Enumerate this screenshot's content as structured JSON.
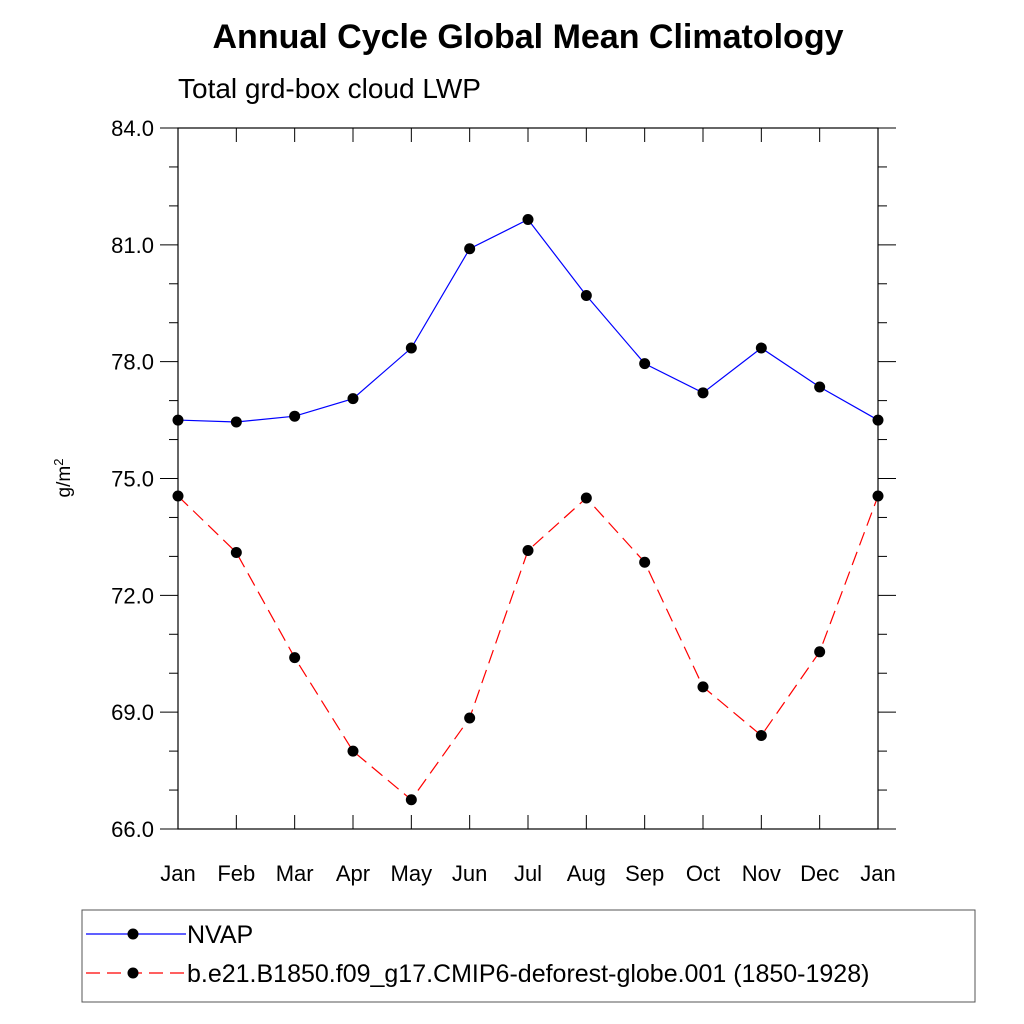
{
  "chart_data": {
    "type": "line",
    "title": "Annual Cycle Global Mean Climatology",
    "subtitle": "Total grd-box cloud LWP",
    "ylabel_base": "g/m",
    "ylabel_sup": "2",
    "xlabel": "",
    "categories": [
      "Jan",
      "Feb",
      "Mar",
      "Apr",
      "May",
      "Jun",
      "Jul",
      "Aug",
      "Sep",
      "Oct",
      "Nov",
      "Dec",
      "Jan"
    ],
    "ylim": [
      66.0,
      84.0
    ],
    "yticks": [
      "66.0",
      "69.0",
      "72.0",
      "75.0",
      "78.0",
      "81.0",
      "84.0"
    ],
    "grid": false,
    "legend_position": "bottom",
    "series": [
      {
        "name": "NVAP",
        "color": "#0000ff",
        "style": "solid",
        "marker": "filled-circle",
        "values": [
          76.5,
          76.45,
          76.6,
          77.05,
          78.35,
          80.9,
          81.65,
          79.7,
          77.95,
          77.2,
          78.35,
          77.35,
          76.5
        ]
      },
      {
        "name": "b.e21.B1850.f09_g17.CMIP6-deforest-globe.001 (1850-1928)",
        "color": "#ff0000",
        "style": "dashed",
        "marker": "filled-circle",
        "values": [
          74.55,
          73.1,
          70.4,
          68.0,
          66.75,
          68.85,
          73.15,
          74.5,
          72.85,
          69.65,
          68.4,
          70.55,
          74.55
        ]
      }
    ]
  }
}
